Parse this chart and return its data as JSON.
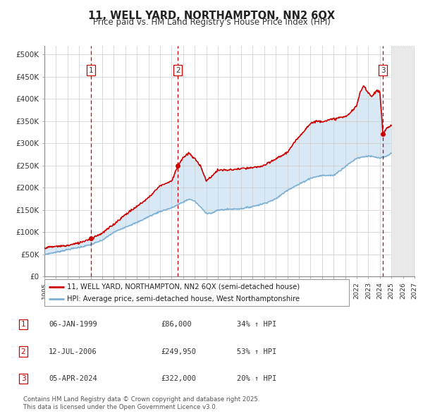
{
  "title": "11, WELL YARD, NORTHAMPTON, NN2 6QX",
  "subtitle": "Price paid vs. HM Land Registry's House Price Index (HPI)",
  "legend_line1": "11, WELL YARD, NORTHAMPTON, NN2 6QX (semi-detached house)",
  "legend_line2": "HPI: Average price, semi-detached house, West Northamptonshire",
  "footnote": "Contains HM Land Registry data © Crown copyright and database right 2025.\nThis data is licensed under the Open Government Licence v3.0.",
  "transactions": [
    {
      "num": 1,
      "date": "06-JAN-1999",
      "price": 86000,
      "pct": "34%",
      "dir": "↑",
      "x_year": 1999.02
    },
    {
      "num": 2,
      "date": "12-JUL-2006",
      "price": 249950,
      "pct": "53%",
      "dir": "↑",
      "x_year": 2006.53
    },
    {
      "num": 3,
      "date": "05-APR-2024",
      "price": 322000,
      "pct": "20%",
      "dir": "↑",
      "x_year": 2024.27
    }
  ],
  "red_color": "#cc0000",
  "blue_color": "#7aafd4",
  "fill_color": "#d8e8f5",
  "grid_color": "#cccccc",
  "xlim": [
    1995.0,
    2027.0
  ],
  "ylim": [
    0,
    520000
  ],
  "yticks": [
    0,
    50000,
    100000,
    150000,
    200000,
    250000,
    300000,
    350000,
    400000,
    450000,
    500000
  ],
  "ytick_labels": [
    "£0",
    "£50K",
    "£100K",
    "£150K",
    "£200K",
    "£250K",
    "£300K",
    "£350K",
    "£400K",
    "£450K",
    "£500K"
  ],
  "hpi_key_x": [
    1995,
    1996,
    1997,
    1998,
    1999,
    2000,
    2001,
    2002,
    2003,
    2004,
    2005,
    2006,
    2007,
    2007.5,
    2008,
    2009,
    2009.5,
    2010,
    2011,
    2012,
    2013,
    2014,
    2015,
    2016,
    2017,
    2018,
    2019,
    2020,
    2021,
    2022,
    2023,
    2024,
    2024.5,
    2025
  ],
  "hpi_key_y": [
    50000,
    55000,
    61000,
    66000,
    72000,
    82000,
    100000,
    112000,
    122000,
    135000,
    147000,
    155000,
    168000,
    175000,
    170000,
    143000,
    143000,
    150000,
    152000,
    153000,
    158000,
    165000,
    175000,
    195000,
    208000,
    222000,
    228000,
    228000,
    248000,
    267000,
    272000,
    267000,
    270000,
    278000
  ],
  "red_key_x": [
    1995,
    1996,
    1997,
    1998,
    1999.02,
    2000,
    2001,
    2002,
    2003,
    2004,
    2005,
    2005.5,
    2006,
    2006.53,
    2007,
    2007.5,
    2008,
    2008.5,
    2009,
    2010,
    2011,
    2012,
    2013,
    2014,
    2015,
    2016,
    2017,
    2017.5,
    2018,
    2018.5,
    2019,
    2019.5,
    2020,
    2020.5,
    2021,
    2021.5,
    2022,
    2022.3,
    2022.6,
    2023,
    2023.3,
    2023.7,
    2024.0,
    2024.27,
    2024.6,
    2025
  ],
  "red_key_y": [
    65000,
    68000,
    70000,
    76000,
    86000,
    98000,
    118000,
    140000,
    158000,
    178000,
    205000,
    210000,
    215000,
    249950,
    268000,
    278000,
    265000,
    250000,
    215000,
    240000,
    240000,
    243000,
    245000,
    250000,
    265000,
    280000,
    315000,
    330000,
    345000,
    350000,
    350000,
    352000,
    355000,
    358000,
    360000,
    370000,
    385000,
    415000,
    430000,
    415000,
    405000,
    420000,
    415000,
    322000,
    335000,
    340000
  ]
}
